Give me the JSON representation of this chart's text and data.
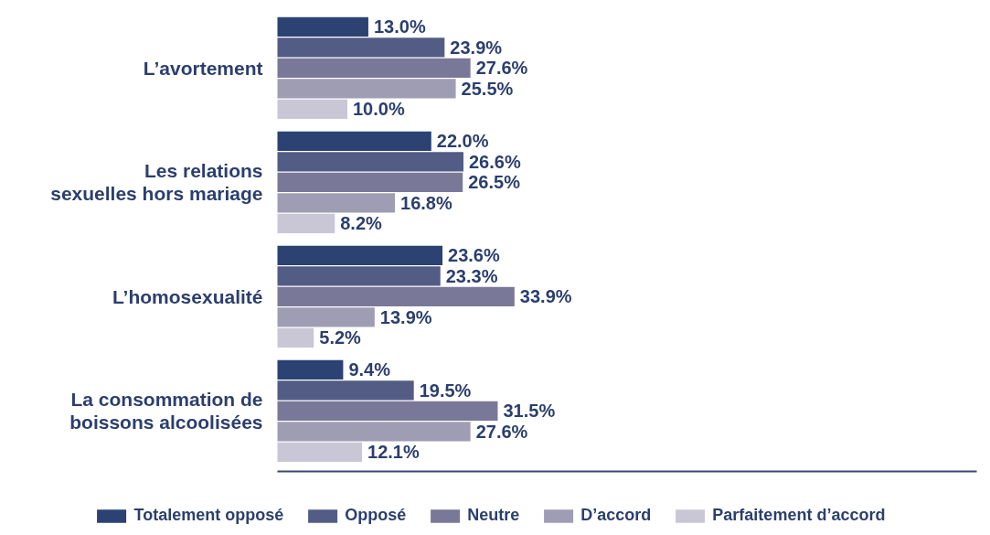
{
  "chart_data": {
    "type": "bar",
    "orientation": "horizontal",
    "categories": [
      "L’avortement",
      "Les relations sexuelles hors mariage",
      "L’homosexualité",
      "La consommation de boissons alcoolisées"
    ],
    "series": [
      {
        "name": "Totalement opposé",
        "color": "#2b4272",
        "values": [
          13.0,
          22.0,
          23.6,
          9.4
        ],
        "value_labels": [
          "13.0%",
          "22.0%",
          "23.6%",
          "9.4%"
        ]
      },
      {
        "name": "Opposé",
        "color": "#525c85",
        "values": [
          23.9,
          26.6,
          23.3,
          19.5
        ],
        "value_labels": [
          "23.9%",
          "26.6%",
          "23.3%",
          "19.5%"
        ]
      },
      {
        "name": "Neutre",
        "color": "#7a7898",
        "values": [
          27.6,
          26.5,
          33.9,
          31.5
        ],
        "value_labels": [
          "27.6%",
          "26.5%",
          "33.9%",
          "31.5%"
        ]
      },
      {
        "name": "D’accord",
        "color": "#9f9db4",
        "values": [
          25.5,
          16.8,
          13.9,
          27.6
        ],
        "value_labels": [
          "25.5%",
          "16.8%",
          "13.9%",
          "27.6%"
        ]
      },
      {
        "name": "Parfaitement d’accord",
        "color": "#c9c7d6",
        "values": [
          10.0,
          8.2,
          5.2,
          12.1
        ],
        "value_labels": [
          "10.0%",
          "8.2%",
          "5.2%",
          "12.1%"
        ]
      }
    ],
    "xlim": [
      0,
      100
    ],
    "tick_labels": "y",
    "legend": "bottom",
    "grid": false
  }
}
